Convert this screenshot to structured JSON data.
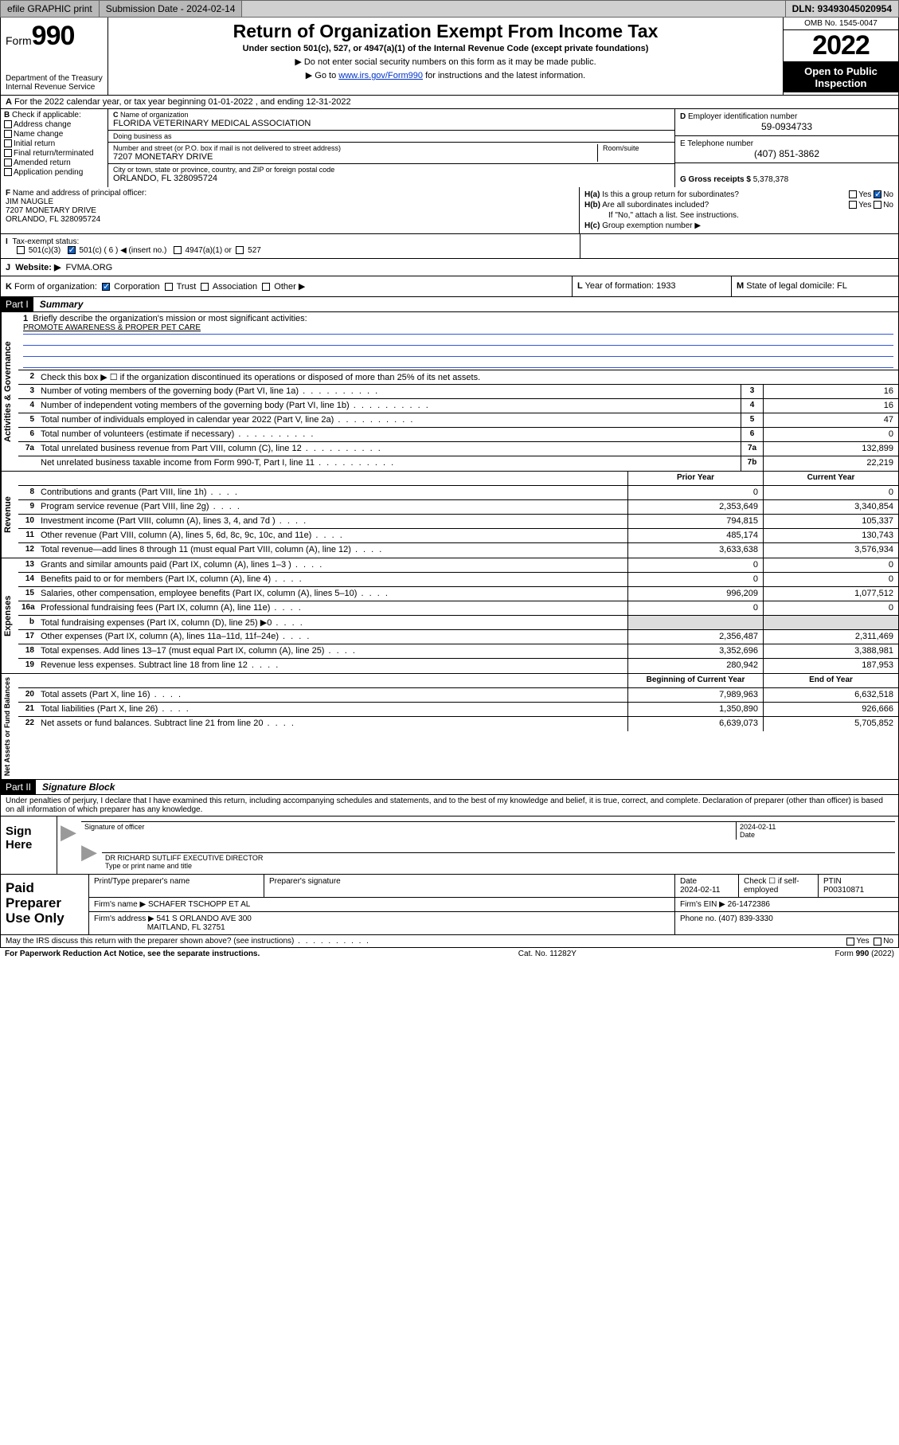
{
  "topbar": {
    "efile": "efile GRAPHIC print",
    "submission_label": "Submission Date - 2024-02-14",
    "dln": "DLN: 93493045020954"
  },
  "header": {
    "form_label_small": "Form",
    "form_number": "990",
    "dept": "Department of the Treasury",
    "irs": "Internal Revenue Service",
    "title": "Return of Organization Exempt From Income Tax",
    "subtitle": "Under section 501(c), 527, or 4947(a)(1) of the Internal Revenue Code (except private foundations)",
    "note1": "▶ Do not enter social security numbers on this form as it may be made public.",
    "note2_pre": "▶ Go to ",
    "note2_link": "www.irs.gov/Form990",
    "note2_post": " for instructions and the latest information.",
    "omb": "OMB No. 1545-0047",
    "year": "2022",
    "open": "Open to Public Inspection"
  },
  "A": {
    "text": "For the 2022 calendar year, or tax year beginning 01-01-2022   , and ending 12-31-2022"
  },
  "B": {
    "label": "Check if applicable:",
    "opts": [
      "Address change",
      "Name change",
      "Initial return",
      "Final return/terminated",
      "Amended return",
      "Application pending"
    ]
  },
  "C": {
    "name_label": "Name of organization",
    "name": "FLORIDA VETERINARY MEDICAL ASSOCIATION",
    "dba_label": "Doing business as",
    "dba": "",
    "street_label": "Number and street (or P.O. box if mail is not delivered to street address)",
    "room_label": "Room/suite",
    "street": "7207 MONETARY DRIVE",
    "city_label": "City or town, state or province, country, and ZIP or foreign postal code",
    "city": "ORLANDO, FL  328095724"
  },
  "D": {
    "label": "Employer identification number",
    "val": "59-0934733"
  },
  "E": {
    "label": "E Telephone number",
    "val": "(407) 851-3862"
  },
  "G": {
    "label": "G Gross receipts $",
    "val": "5,378,378"
  },
  "F": {
    "label": "Name and address of principal officer:",
    "name": "JIM NAUGLE",
    "addr1": "7207 MONETARY DRIVE",
    "addr2": "ORLANDO, FL  328095724"
  },
  "H": {
    "a": "Is this a group return for subordinates?",
    "b": "Are all subordinates included?",
    "bnote": "If \"No,\" attach a list. See instructions.",
    "c": "Group exemption number ▶",
    "yes": "Yes",
    "no": "No"
  },
  "I": {
    "label": "Tax-exempt status:",
    "o1": "501(c)(3)",
    "o2": "501(c) ( 6 ) ◀ (insert no.)",
    "o3": "4947(a)(1) or",
    "o4": "527"
  },
  "J": {
    "label": "Website: ▶",
    "val": "FVMA.ORG"
  },
  "K": {
    "label": "Form of organization:",
    "o1": "Corporation",
    "o2": "Trust",
    "o3": "Association",
    "o4": "Other ▶"
  },
  "L": {
    "label": "Year of formation:",
    "val": "1933"
  },
  "M": {
    "label": "State of legal domicile:",
    "val": "FL"
  },
  "partI": {
    "label": "Part I",
    "title": "Summary"
  },
  "summary": {
    "l1": "Briefly describe the organization's mission or most significant activities:",
    "mission": "PROMOTE AWARENESS & PROPER PET CARE",
    "l2": "Check this box ▶ ☐  if the organization discontinued its operations or disposed of more than 25% of its net assets.",
    "rows_gov": [
      {
        "n": "3",
        "t": "Number of voting members of the governing body (Part VI, line 1a)",
        "box": "3",
        "v": "16"
      },
      {
        "n": "4",
        "t": "Number of independent voting members of the governing body (Part VI, line 1b)",
        "box": "4",
        "v": "16"
      },
      {
        "n": "5",
        "t": "Total number of individuals employed in calendar year 2022 (Part V, line 2a)",
        "box": "5",
        "v": "47"
      },
      {
        "n": "6",
        "t": "Total number of volunteers (estimate if necessary)",
        "box": "6",
        "v": "0"
      },
      {
        "n": "7a",
        "t": "Total unrelated business revenue from Part VIII, column (C), line 12",
        "box": "7a",
        "v": "132,899"
      },
      {
        "n": "",
        "t": "Net unrelated business taxable income from Form 990-T, Part I, line 11",
        "box": "7b",
        "v": "22,219"
      }
    ],
    "col_prior": "Prior Year",
    "col_current": "Current Year",
    "col_boy": "Beginning of Current Year",
    "col_eoy": "End of Year",
    "rev": [
      {
        "n": "8",
        "t": "Contributions and grants (Part VIII, line 1h)",
        "p": "0",
        "c": "0"
      },
      {
        "n": "9",
        "t": "Program service revenue (Part VIII, line 2g)",
        "p": "2,353,649",
        "c": "3,340,854"
      },
      {
        "n": "10",
        "t": "Investment income (Part VIII, column (A), lines 3, 4, and 7d )",
        "p": "794,815",
        "c": "105,337"
      },
      {
        "n": "11",
        "t": "Other revenue (Part VIII, column (A), lines 5, 6d, 8c, 9c, 10c, and 11e)",
        "p": "485,174",
        "c": "130,743"
      },
      {
        "n": "12",
        "t": "Total revenue—add lines 8 through 11 (must equal Part VIII, column (A), line 12)",
        "p": "3,633,638",
        "c": "3,576,934"
      }
    ],
    "exp": [
      {
        "n": "13",
        "t": "Grants and similar amounts paid (Part IX, column (A), lines 1–3 )",
        "p": "0",
        "c": "0"
      },
      {
        "n": "14",
        "t": "Benefits paid to or for members (Part IX, column (A), line 4)",
        "p": "0",
        "c": "0"
      },
      {
        "n": "15",
        "t": "Salaries, other compensation, employee benefits (Part IX, column (A), lines 5–10)",
        "p": "996,209",
        "c": "1,077,512"
      },
      {
        "n": "16a",
        "t": "Professional fundraising fees (Part IX, column (A), line 11e)",
        "p": "0",
        "c": "0"
      },
      {
        "n": "b",
        "t": "Total fundraising expenses (Part IX, column (D), line 25) ▶0",
        "p": "",
        "c": "",
        "shade": true
      },
      {
        "n": "17",
        "t": "Other expenses (Part IX, column (A), lines 11a–11d, 11f–24e)",
        "p": "2,356,487",
        "c": "2,311,469"
      },
      {
        "n": "18",
        "t": "Total expenses. Add lines 13–17 (must equal Part IX, column (A), line 25)",
        "p": "3,352,696",
        "c": "3,388,981"
      },
      {
        "n": "19",
        "t": "Revenue less expenses. Subtract line 18 from line 12",
        "p": "280,942",
        "c": "187,953"
      }
    ],
    "net": [
      {
        "n": "20",
        "t": "Total assets (Part X, line 16)",
        "p": "7,989,963",
        "c": "6,632,518"
      },
      {
        "n": "21",
        "t": "Total liabilities (Part X, line 26)",
        "p": "1,350,890",
        "c": "926,666"
      },
      {
        "n": "22",
        "t": "Net assets or fund balances. Subtract line 21 from line 20",
        "p": "6,639,073",
        "c": "5,705,852"
      }
    ],
    "side_gov": "Activities & Governance",
    "side_rev": "Revenue",
    "side_exp": "Expenses",
    "side_net": "Net Assets or Fund Balances"
  },
  "partII": {
    "label": "Part II",
    "title": "Signature Block",
    "decl": "Under penalties of perjury, I declare that I have examined this return, including accompanying schedules and statements, and to the best of my knowledge and belief, it is true, correct, and complete. Declaration of preparer (other than officer) is based on all information of which preparer has any knowledge."
  },
  "sign": {
    "here": "Sign Here",
    "sig_label": "Signature of officer",
    "date_label": "Date",
    "date": "2024-02-11",
    "name": "DR RICHARD SUTLIFF  EXECUTIVE DIRECTOR",
    "name_label": "Type or print name and title"
  },
  "paid": {
    "label": "Paid Preparer Use Only",
    "h1": "Print/Type preparer's name",
    "h2": "Preparer's signature",
    "h3": "Date",
    "h3v": "2024-02-11",
    "h4": "Check ☐ if self-employed",
    "h5": "PTIN",
    "h5v": "P00310871",
    "firm_label": "Firm's name   ▶",
    "firm": "SCHAFER TSCHOPP ET AL",
    "ein_label": "Firm's EIN ▶",
    "ein": "26-1472386",
    "addr_label": "Firm's address ▶",
    "addr1": "541 S ORLANDO AVE 300",
    "addr2": "MAITLAND, FL  32751",
    "phone_label": "Phone no.",
    "phone": "(407) 839-3330"
  },
  "foot": {
    "q": "May the IRS discuss this return with the preparer shown above? (see instructions)",
    "yes": "Yes",
    "no": "No",
    "pra": "For Paperwork Reduction Act Notice, see the separate instructions.",
    "cat": "Cat. No. 11282Y",
    "form": "Form 990 (2022)"
  }
}
